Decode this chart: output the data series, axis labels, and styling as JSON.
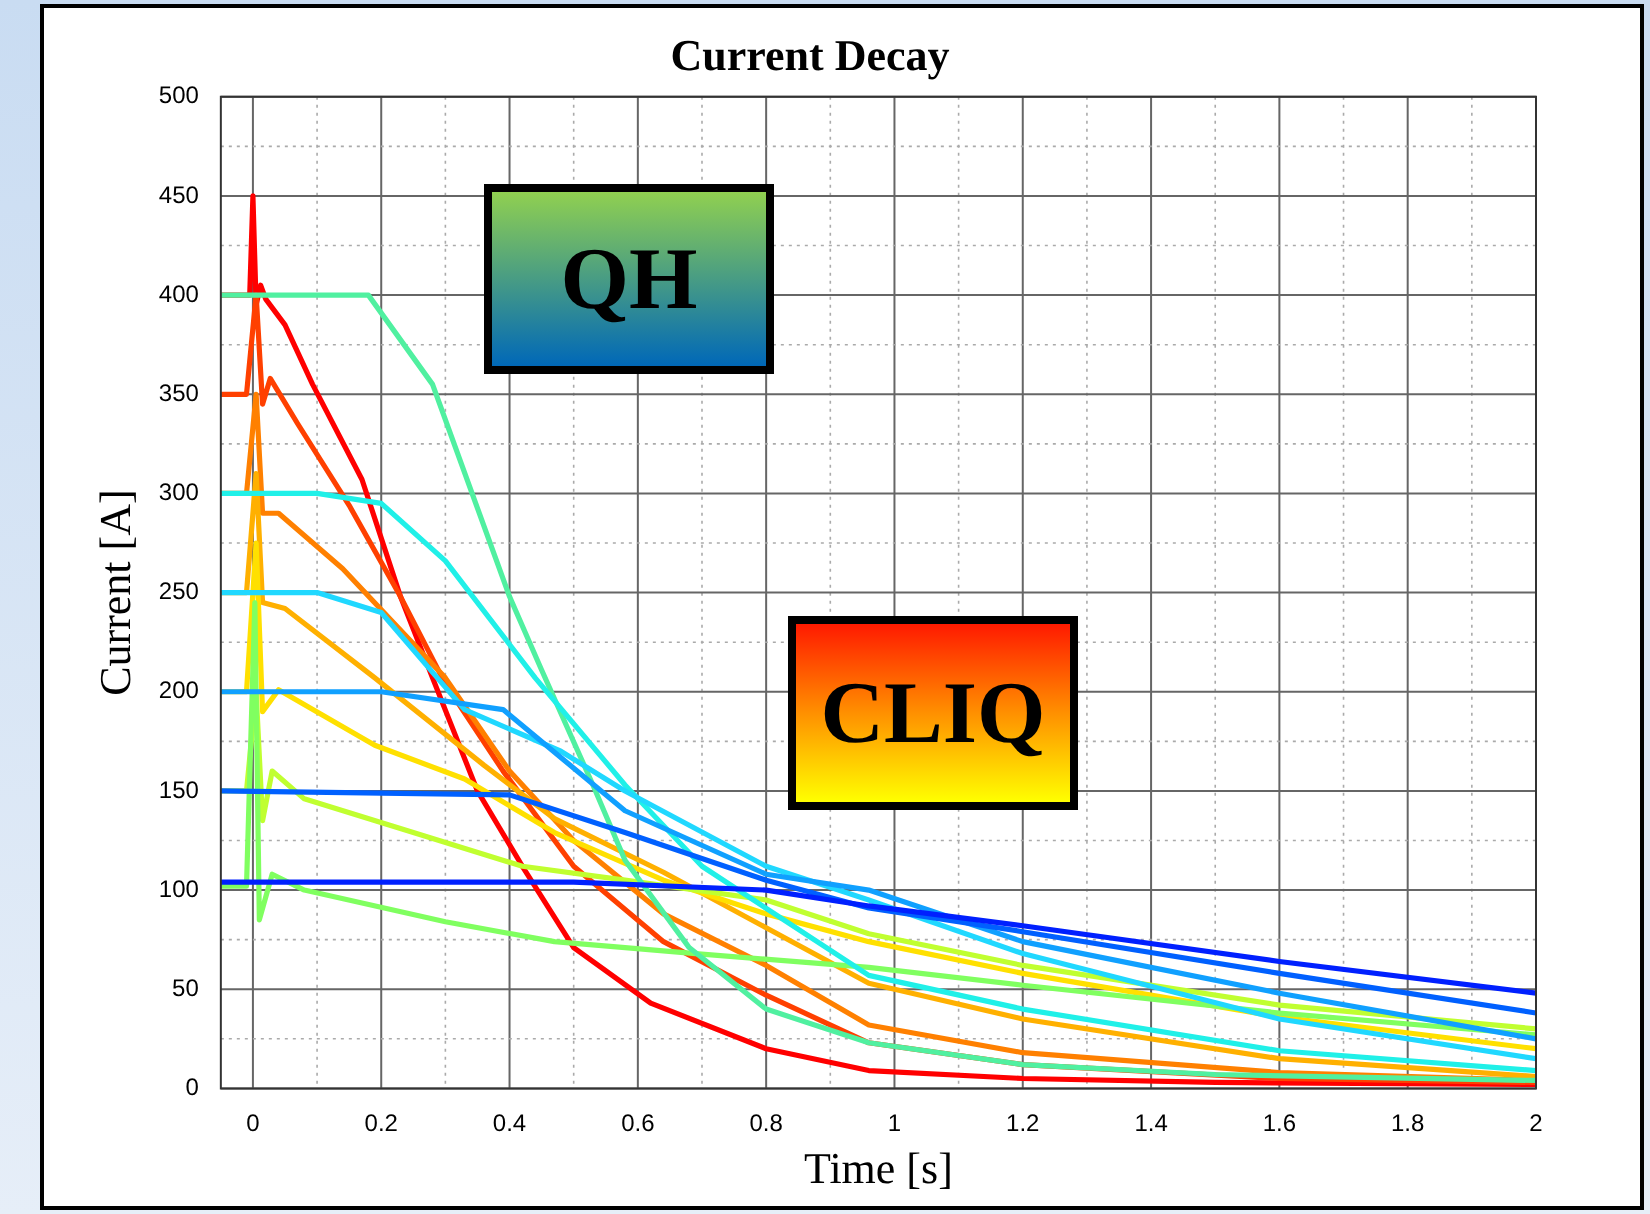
{
  "chart_data": {
    "type": "line",
    "title": "Current Decay",
    "xlabel": "Time [s]",
    "ylabel": "Current [A]",
    "annotations": [
      "QH",
      "CLIQ"
    ],
    "xlim": [
      -0.05,
      2
    ],
    "ylim": [
      0,
      500
    ],
    "xticks": [
      0,
      {
        "value": 0.1,
        "label": null
      },
      0.2,
      {
        "value": 0.3,
        "label": null
      },
      0.4,
      {
        "value": 0.5,
        "label": null
      },
      0.6,
      {
        "value": 0.7,
        "label": null
      },
      0.8,
      {
        "value": 0.9,
        "label": null
      },
      1,
      {
        "value": 1.1,
        "label": null
      },
      1.2,
      {
        "value": 1.3,
        "label": null
      },
      1.4,
      {
        "value": 1.5,
        "label": null
      },
      1.6,
      {
        "value": 1.7,
        "label": null
      },
      1.8,
      {
        "value": 1.9,
        "label": null
      },
      2
    ],
    "yticks": [
      0,
      {
        "value": 25,
        "label": null
      },
      50,
      {
        "value": 75,
        "label": null
      },
      100,
      {
        "value": 125,
        "label": null
      },
      150,
      {
        "value": 175,
        "label": null
      },
      200,
      {
        "value": 225,
        "label": null
      },
      250,
      {
        "value": 275,
        "label": null
      },
      300,
      {
        "value": 325,
        "label": null
      },
      350,
      {
        "value": 375,
        "label": null
      },
      400,
      {
        "value": 425,
        "label": null
      },
      450,
      {
        "value": 475,
        "label": null
      },
      500
    ],
    "grid": true,
    "legend": false,
    "marker": "none",
    "line_style": "solid",
    "series": [
      {
        "color": "#0020ff",
        "x": [
          -0.05,
          0.5,
          0.8,
          0.96,
          1.2,
          1.6,
          2
        ],
        "values": [
          104,
          104,
          100,
          92,
          82,
          64,
          48
        ]
      },
      {
        "color": "#0060ff",
        "x": [
          -0.05,
          0.4,
          0.58,
          0.8,
          0.96,
          1.2,
          1.6,
          2
        ],
        "values": [
          150,
          148,
          129,
          105,
          91,
          79,
          58,
          38
        ]
      },
      {
        "color": "#10a0ff",
        "x": [
          -0.05,
          0.2,
          0.39,
          0.58,
          0.8,
          0.96,
          1.2,
          1.6,
          2
        ],
        "values": [
          200,
          200,
          191,
          140,
          108,
          100,
          74,
          48,
          25
        ]
      },
      {
        "color": "#20d8ff",
        "x": [
          -0.05,
          0.1,
          0.2,
          0.33,
          0.48,
          0.58,
          0.8,
          0.96,
          1.2,
          1.6,
          2
        ],
        "values": [
          250,
          250,
          240,
          191,
          170,
          150,
          112,
          95,
          68,
          35,
          15
        ]
      },
      {
        "color": "#20f0e8",
        "x": [
          -0.05,
          0.1,
          0.2,
          0.3,
          0.44,
          0.58,
          0.7,
          0.96,
          1.2,
          1.6,
          2
        ],
        "values": [
          300,
          300,
          295,
          266,
          207,
          153,
          112,
          57,
          40,
          19,
          9
        ]
      },
      {
        "color": "#50f0a0",
        "x": [
          -0.05,
          0.1,
          0.18,
          0.28,
          0.4,
          0.45,
          0.53,
          0.58,
          0.68,
          0.8,
          0.96,
          1.2,
          1.5,
          2
        ],
        "values": [
          400,
          400,
          400,
          355,
          248,
          211,
          153,
          115,
          71,
          40,
          23,
          12,
          7,
          4
        ]
      },
      {
        "color": "#80ff60",
        "x": [
          -0.05,
          -0.01,
          0.003,
          0.01,
          0.03,
          0.08,
          0.3,
          0.47,
          0.69,
          0.96,
          1.2,
          1.6,
          2
        ],
        "values": [
          102,
          102,
          245,
          85,
          108,
          100,
          84,
          74,
          68,
          61,
          52,
          38,
          27
        ]
      },
      {
        "color": "#c0ff30",
        "x": [
          -0.05,
          -0.01,
          0.005,
          0.015,
          0.03,
          0.08,
          0.25,
          0.42,
          0.58,
          0.8,
          0.96,
          1.2,
          1.6,
          2
        ],
        "values": [
          150,
          150,
          200,
          135,
          160,
          146,
          129,
          112,
          105,
          95,
          78,
          62,
          42,
          30
        ]
      },
      {
        "color": "#ffe000",
        "x": [
          -0.05,
          -0.01,
          0.005,
          0.015,
          0.04,
          0.19,
          0.33,
          0.47,
          0.64,
          0.8,
          0.96,
          1.2,
          1.6,
          2
        ],
        "values": [
          200,
          200,
          275,
          190,
          201,
          173,
          156,
          129,
          105,
          88,
          74,
          58,
          36,
          20
        ]
      },
      {
        "color": "#ffb000",
        "x": [
          -0.05,
          -0.01,
          0.005,
          0.015,
          0.05,
          0.19,
          0.36,
          0.47,
          0.64,
          0.8,
          0.96,
          1.2,
          1.6,
          2
        ],
        "values": [
          250,
          250,
          310,
          245,
          242,
          207,
          163,
          136,
          109,
          81,
          53,
          35,
          15,
          6
        ]
      },
      {
        "color": "#ff8000",
        "x": [
          -0.05,
          -0.01,
          0.005,
          0.015,
          0.04,
          0.14,
          0.3,
          0.4,
          0.5,
          0.64,
          0.8,
          0.96,
          1.2,
          1.6,
          2
        ],
        "values": [
          300,
          300,
          350,
          290,
          290,
          262,
          207,
          160,
          125,
          88,
          62,
          32,
          18,
          8,
          4
        ]
      },
      {
        "color": "#ff4000",
        "x": [
          -0.05,
          -0.01,
          0.005,
          0.015,
          0.027,
          0.07,
          0.15,
          0.23,
          0.3,
          0.39,
          0.5,
          0.64,
          0.8,
          0.96,
          1.2,
          1.6,
          2
        ],
        "values": [
          350,
          350,
          400,
          345,
          358,
          335,
          294,
          248,
          204,
          160,
          112,
          74,
          47,
          23,
          12,
          5,
          3
        ]
      },
      {
        "color": "#ff0000",
        "x": [
          -0.05,
          -0.005,
          0,
          0.005,
          0.012,
          0.02,
          0.05,
          0.093,
          0.17,
          0.23,
          0.28,
          0.35,
          0.42,
          0.5,
          0.62,
          0.8,
          0.96,
          1.2,
          1.5,
          2
        ],
        "values": [
          400,
          400,
          450,
          395,
          405,
          398,
          385,
          355,
          307,
          248,
          207,
          150,
          112,
          71,
          43,
          20,
          9,
          5,
          3,
          2
        ]
      }
    ]
  }
}
